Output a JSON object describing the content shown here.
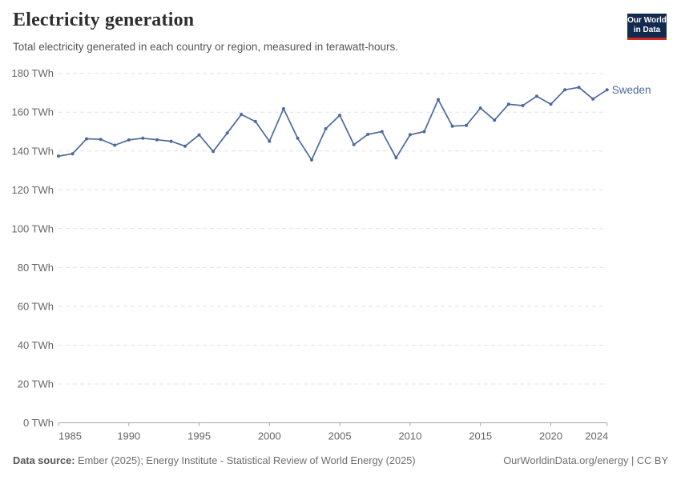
{
  "header": {
    "title": "Electricity generation",
    "subtitle": "Total electricity generated in each country or region, measured in terawatt-hours."
  },
  "logo": {
    "line1": "Our World",
    "line2": "in Data",
    "bg_color": "#122A4E",
    "accent_color": "#D02B20"
  },
  "chart_data": {
    "type": "line",
    "title": "Electricity generation",
    "subtitle": "Total electricity generated in each country or region, measured in terawatt-hours.",
    "x": [
      1985,
      1986,
      1987,
      1988,
      1989,
      1990,
      1991,
      1992,
      1993,
      1994,
      1995,
      1996,
      1997,
      1998,
      1999,
      2000,
      2001,
      2002,
      2003,
      2004,
      2005,
      2006,
      2007,
      2008,
      2009,
      2010,
      2011,
      2012,
      2013,
      2014,
      2015,
      2016,
      2017,
      2018,
      2019,
      2020,
      2021,
      2022,
      2023,
      2024
    ],
    "series": [
      {
        "name": "Sweden",
        "color": "#4C6A9C",
        "values": [
          137.4,
          138.6,
          146.3,
          146.0,
          143.0,
          145.7,
          146.6,
          145.8,
          145.0,
          142.5,
          148.3,
          139.8,
          149.3,
          158.8,
          155.2,
          145.0,
          161.8,
          146.6,
          135.4,
          151.5,
          158.4,
          143.3,
          148.6,
          150.0,
          136.5,
          148.4,
          150.0,
          166.5,
          152.8,
          153.2,
          162.1,
          155.9,
          164.1,
          163.4,
          168.2,
          164.1,
          171.5,
          172.8,
          166.8,
          171.5
        ]
      }
    ],
    "xlabel": "",
    "ylabel": "TWh",
    "ylim": [
      0,
      180
    ],
    "ytick_step": 20,
    "ytick_suffix": " TWh",
    "x_ticks": [
      1985,
      1990,
      1995,
      2000,
      2005,
      2010,
      2015,
      2020,
      2024
    ],
    "legend_position": "end-of-line-label",
    "grid": "horizontal-dashed",
    "grid_color": "#E2E2E2",
    "axis_color": "#A5A5A5",
    "tick_label_color": "#666666"
  },
  "footer": {
    "source_label": "Data source:",
    "source_text": " Ember (2025); Energy Institute - Statistical Review of World Energy (2025)",
    "right_text": "OurWorldinData.org/energy | CC BY"
  }
}
